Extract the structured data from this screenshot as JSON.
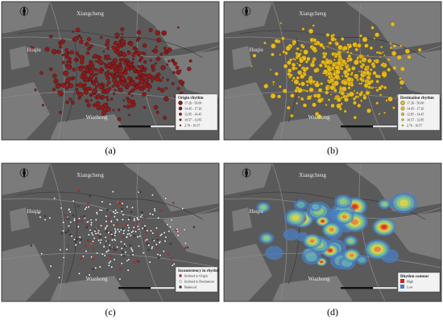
{
  "panels": [
    {
      "label": "(a)",
      "places": [
        "Xiangcheng",
        "Huqiu",
        "Wuzhong"
      ],
      "legend": {
        "title": "Origin rhythm",
        "items": [
          "17.26 - 50.00",
          "14.45 - 17.26",
          "12.85 - 14.45",
          "10.57 - 12.85",
          "2.76 - 10.57"
        ]
      }
    },
    {
      "label": "(b)",
      "places": [
        "Xiangcheng",
        "Huqiu",
        "Wuzhong"
      ],
      "legend": {
        "title": "Destination rhythm",
        "items": [
          "17.26 - 50.00",
          "14.45 - 17.26",
          "12.85 - 14.45",
          "10.57 - 12.85",
          "2.76 - 10.57"
        ]
      }
    },
    {
      "label": "(c)",
      "places": [
        "Xiangcheng",
        "Huqiu",
        "Wuzhong"
      ],
      "legend": {
        "title": "Inconsistency in rhythm",
        "items": [
          "Inclined to Origin",
          "Inclined to Destination",
          "Balanced"
        ]
      }
    },
    {
      "label": "(d)",
      "places": [
        "Xiangcheng",
        "Huqiu",
        "Wuzhong"
      ],
      "legend": {
        "title": "Rhythm contour",
        "items": [
          "High",
          "Low"
        ]
      }
    }
  ]
}
